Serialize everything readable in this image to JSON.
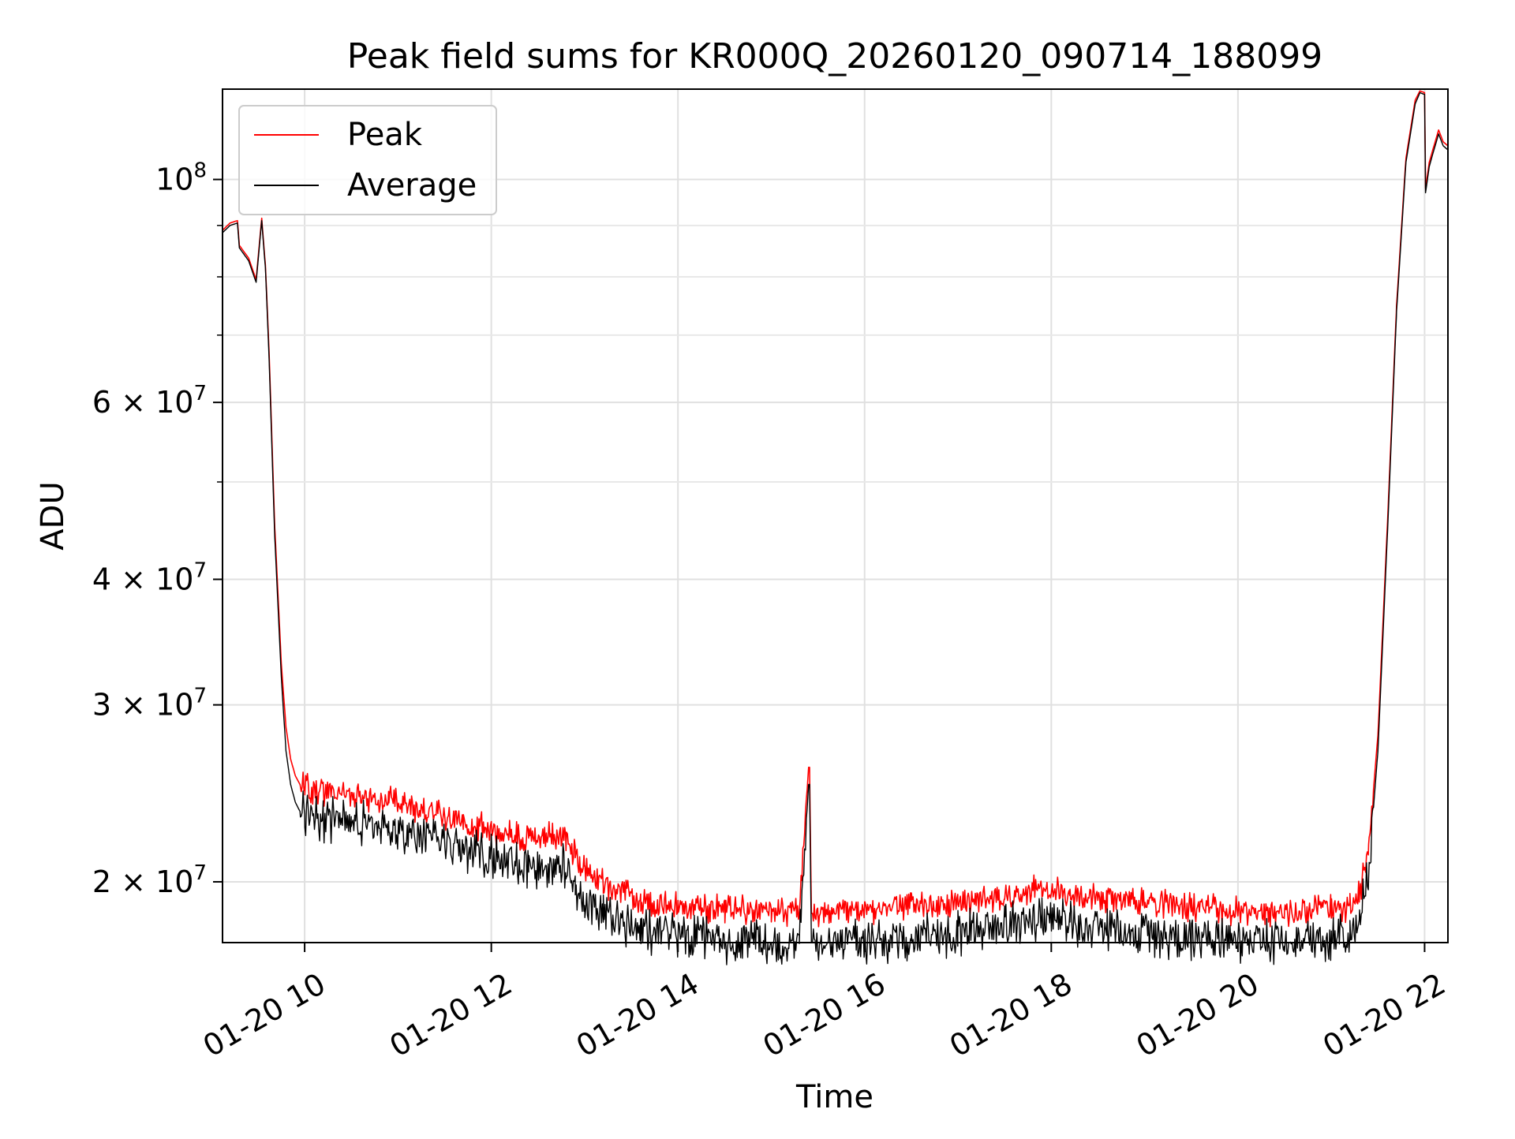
{
  "chart_data": {
    "type": "line",
    "title": "Peak field sums for KR000Q_20260120_090714_188099",
    "xlabel": "Time",
    "ylabel": "ADU",
    "yscale": "log",
    "xlim": [
      9.12,
      22.25
    ],
    "ylim": [
      17400000,
      123000000
    ],
    "grid": true,
    "legend_position": "upper-left",
    "x_ticks": [
      {
        "value": 10,
        "label": "01-20 10"
      },
      {
        "value": 12,
        "label": "01-20 12"
      },
      {
        "value": 14,
        "label": "01-20 14"
      },
      {
        "value": 16,
        "label": "01-20 16"
      },
      {
        "value": 18,
        "label": "01-20 18"
      },
      {
        "value": 20,
        "label": "01-20 20"
      },
      {
        "value": 22,
        "label": "01-20 22"
      }
    ],
    "y_ticks": [
      {
        "value": 20000000,
        "base": "2 × 10",
        "exp": "7"
      },
      {
        "value": 30000000,
        "base": "3 × 10",
        "exp": "7"
      },
      {
        "value": 40000000,
        "base": "4 × 10",
        "exp": "7"
      },
      {
        "value": 60000000,
        "base": "6 × 10",
        "exp": "7"
      },
      {
        "value": 100000000,
        "base": "10",
        "exp": "8"
      }
    ],
    "y_minor_ticks": [
      50000000,
      70000000,
      80000000,
      90000000
    ],
    "series": [
      {
        "name": "Peak",
        "color": "#ff0000",
        "x": [
          9.12,
          9.2,
          9.28,
          9.3,
          9.4,
          9.48,
          9.54,
          9.58,
          9.62,
          9.68,
          9.75,
          9.8,
          9.85,
          9.9,
          9.95,
          10.0,
          10.2,
          10.5,
          10.9,
          11.3,
          11.7,
          11.9,
          12.1,
          12.4,
          12.8,
          12.9,
          13.0,
          13.2,
          13.6,
          14.0,
          14.5,
          15.0,
          15.3,
          15.4,
          15.41,
          15.43,
          15.44,
          15.5,
          16.0,
          16.5,
          17.0,
          17.5,
          17.9,
          18.2,
          18.6,
          19.0,
          19.5,
          20.0,
          20.5,
          21.0,
          21.2,
          21.3,
          21.4,
          21.5,
          21.6,
          21.7,
          21.8,
          21.9,
          21.95,
          22.0,
          22.01,
          22.05,
          22.1,
          22.15,
          22.2,
          22.25
        ],
        "y": [
          89000000,
          90500000,
          91000000,
          86000000,
          83500000,
          79500000,
          91500000,
          82000000,
          67000000,
          45000000,
          33000000,
          28500000,
          26500000,
          25500000,
          25000000,
          24800000,
          24600000,
          24500000,
          24100000,
          23500000,
          23000000,
          22700000,
          22300000,
          22200000,
          22200000,
          21300000,
          20500000,
          19900000,
          19200000,
          18900000,
          18800000,
          18700000,
          18700000,
          26000000,
          26000000,
          18600000,
          18600000,
          18700000,
          18750000,
          18900000,
          19100000,
          19400000,
          19700000,
          19500000,
          19200000,
          19100000,
          18900000,
          18700000,
          18700000,
          18800000,
          18900000,
          19500000,
          21500000,
          28000000,
          45000000,
          75000000,
          105000000,
          120000000,
          122500000,
          122000000,
          98000000,
          104000000,
          108000000,
          112000000,
          109000000,
          108000000
        ]
      },
      {
        "name": "Average",
        "color": "#000000",
        "x": [
          9.12,
          9.2,
          9.28,
          9.3,
          9.4,
          9.48,
          9.54,
          9.58,
          9.62,
          9.68,
          9.75,
          9.8,
          9.85,
          9.9,
          9.95,
          10.0,
          10.2,
          10.5,
          10.9,
          11.3,
          11.7,
          11.9,
          12.1,
          12.4,
          12.8,
          12.9,
          13.0,
          13.2,
          13.6,
          14.0,
          14.5,
          15.0,
          15.3,
          15.4,
          15.41,
          15.43,
          15.44,
          15.5,
          16.0,
          16.5,
          17.0,
          17.5,
          17.9,
          18.2,
          18.6,
          19.0,
          19.5,
          20.0,
          20.5,
          21.0,
          21.2,
          21.3,
          21.4,
          21.5,
          21.6,
          21.7,
          21.8,
          21.9,
          21.95,
          22.0,
          22.01,
          22.05,
          22.1,
          22.15,
          22.2,
          22.25
        ],
        "y": [
          88500000,
          90000000,
          90500000,
          85500000,
          83000000,
          79000000,
          91000000,
          81500000,
          66000000,
          44000000,
          32000000,
          27000000,
          25000000,
          24000000,
          23500000,
          23300000,
          23100000,
          23000000,
          22700000,
          22100000,
          21600000,
          21300000,
          21000000,
          20800000,
          20800000,
          19900000,
          19200000,
          18600000,
          17900000,
          17700000,
          17500000,
          17450000,
          17450000,
          25000000,
          25000000,
          17400000,
          17400000,
          17450000,
          17450000,
          17600000,
          17800000,
          18100000,
          18400000,
          18200000,
          17900000,
          17800000,
          17600000,
          17500000,
          17500000,
          17600000,
          17700000,
          18300000,
          20500000,
          27000000,
          44000000,
          74000000,
          104000000,
          119000000,
          122000000,
          121500000,
          97000000,
          103000000,
          107000000,
          111000000,
          108000000,
          107000000
        ]
      }
    ]
  }
}
